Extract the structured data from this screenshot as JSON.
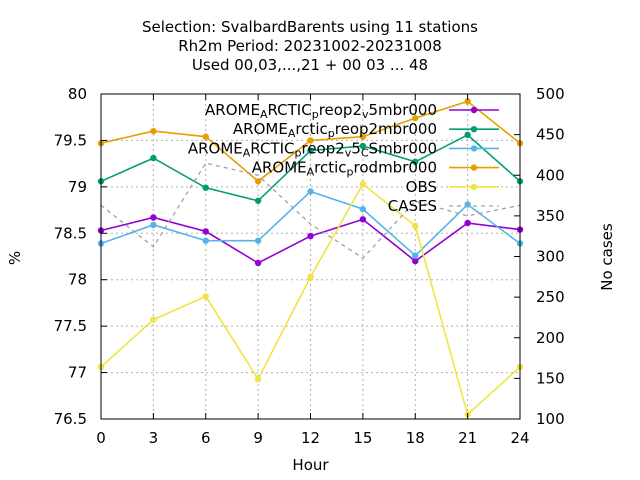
{
  "chart_data": {
    "type": "line",
    "title_lines": [
      "Selection: SvalbardBarents using    11 stations",
      "Rh2m   Period: 20231002-20231008",
      "Used  00,03,...,21  + 00 03 ... 48"
    ],
    "xlabel": "Hour",
    "ylabel": "%",
    "y2label": "No cases",
    "x": [
      0,
      3,
      6,
      9,
      12,
      15,
      18,
      21,
      24
    ],
    "xlim": [
      0,
      24
    ],
    "ylim": [
      76.5,
      80
    ],
    "y2lim": [
      100,
      500
    ],
    "xticks": [
      "0",
      "3",
      "6",
      "9",
      "12",
      "15",
      "18",
      "21",
      "24"
    ],
    "yticks": [
      "76.5",
      "77",
      "77.5",
      "78",
      "78.5",
      "79",
      "79.5",
      "80"
    ],
    "y2ticks": [
      "100",
      "150",
      "200",
      "250",
      "300",
      "350",
      "400",
      "450",
      "500"
    ],
    "grid": true,
    "legend_position": "top-right",
    "series": [
      {
        "name": "AROME_ARCTIC_preop2_v_5mbr000",
        "label_parts": [
          [
            "AROME",
            ""
          ],
          [
            "A",
            "sub"
          ],
          [
            "RCTIC",
            ""
          ],
          [
            "p",
            "sub"
          ],
          [
            "reop2",
            ""
          ],
          [
            "v",
            "sub"
          ],
          [
            "5mbr000",
            ""
          ]
        ],
        "color": "#9400d3",
        "axis": "left",
        "marker": true,
        "values": [
          78.53,
          78.67,
          78.52,
          78.18,
          78.47,
          78.65,
          78.2,
          78.61,
          78.54
        ]
      },
      {
        "name": "AROME_Arctic_preop2mbr000",
        "label_parts": [
          [
            "AROME",
            ""
          ],
          [
            "A",
            "sub"
          ],
          [
            "rctic",
            ""
          ],
          [
            "p",
            "sub"
          ],
          [
            "reop2mbr000",
            ""
          ]
        ],
        "color": "#009e73",
        "axis": "left",
        "marker": true,
        "values": [
          79.06,
          79.31,
          78.99,
          78.85,
          79.39,
          79.44,
          79.27,
          79.56,
          79.06
        ]
      },
      {
        "name": "AROME_ARCTIC_preop2_v_5_C_Smbr000",
        "label_parts": [
          [
            "AROME",
            ""
          ],
          [
            "A",
            "sub"
          ],
          [
            "RCTIC",
            ""
          ],
          [
            "p",
            "sub"
          ],
          [
            "reop2",
            ""
          ],
          [
            "v",
            "sub"
          ],
          [
            "5",
            ""
          ],
          [
            "C",
            "sub"
          ],
          [
            "Smbr000",
            ""
          ]
        ],
        "color": "#56b4e9",
        "axis": "left",
        "marker": true,
        "values": [
          78.39,
          78.59,
          78.42,
          78.42,
          78.95,
          78.76,
          78.26,
          78.81,
          78.39
        ]
      },
      {
        "name": "AROME_Arctic_prodmbr000",
        "label_parts": [
          [
            "AROME",
            ""
          ],
          [
            "A",
            "sub"
          ],
          [
            "rctic",
            ""
          ],
          [
            "p",
            "sub"
          ],
          [
            "rodmbr000",
            ""
          ]
        ],
        "color": "#e69f00",
        "axis": "left",
        "marker": true,
        "values": [
          79.47,
          79.6,
          79.54,
          79.06,
          79.5,
          79.54,
          79.74,
          79.92,
          79.47
        ]
      },
      {
        "name": "OBS",
        "label_parts": [
          [
            "OBS",
            ""
          ]
        ],
        "color": "#f0e442",
        "axis": "left",
        "marker": true,
        "values": [
          77.06,
          77.57,
          77.82,
          76.93,
          78.03,
          79.03,
          78.58,
          76.55,
          77.06
        ]
      },
      {
        "name": "CASES",
        "label_parts": [
          [
            "CASES",
            ""
          ]
        ],
        "color": "#a0a0a0",
        "axis": "right",
        "marker": false,
        "dashed": true,
        "values": [
          363,
          312,
          415,
          400,
          340,
          298,
          368,
          350,
          363
        ]
      }
    ]
  }
}
